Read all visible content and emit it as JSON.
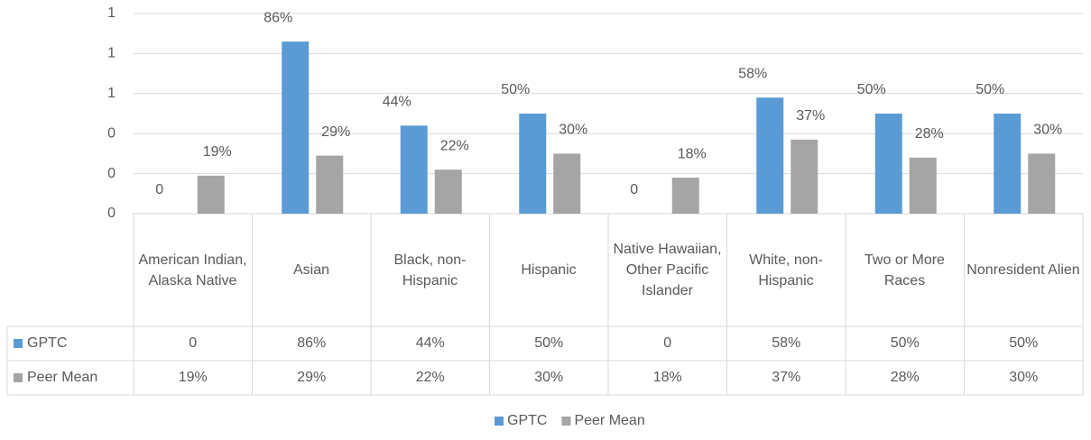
{
  "chart_data": {
    "type": "bar",
    "categories": [
      "American Indian, Alaska Native",
      "Asian",
      "Black, non-Hispanic",
      "Hispanic",
      "Native Hawaiian, Other Pacific Islander",
      "White, non-Hispanic",
      "Two or More Races",
      "Nonresident Alien"
    ],
    "series": [
      {
        "name": "GPTC",
        "color": "#5b9bd5",
        "values": [
          0,
          0.86,
          0.44,
          0.5,
          0,
          0.58,
          0.5,
          0.5
        ],
        "value_labels": [
          "0",
          "86%",
          "44%",
          "50%",
          "0",
          "58%",
          "50%",
          "50%"
        ]
      },
      {
        "name": "Peer Mean",
        "color": "#a5a5a5",
        "values": [
          0.19,
          0.29,
          0.22,
          0.3,
          0.18,
          0.37,
          0.28,
          0.3
        ],
        "value_labels": [
          "19%",
          "29%",
          "22%",
          "30%",
          "18%",
          "37%",
          "28%",
          "30%"
        ]
      }
    ],
    "ylim": [
      0,
      1
    ],
    "yticks": [
      {
        "value": 0,
        "label": "0"
      },
      {
        "value": 0.2,
        "label": "0"
      },
      {
        "value": 0.4,
        "label": "0"
      },
      {
        "value": 0.6,
        "label": "1"
      },
      {
        "value": 0.8,
        "label": "1"
      },
      {
        "value": 1,
        "label": "1"
      }
    ],
    "grid": true,
    "legend": "bottom"
  }
}
